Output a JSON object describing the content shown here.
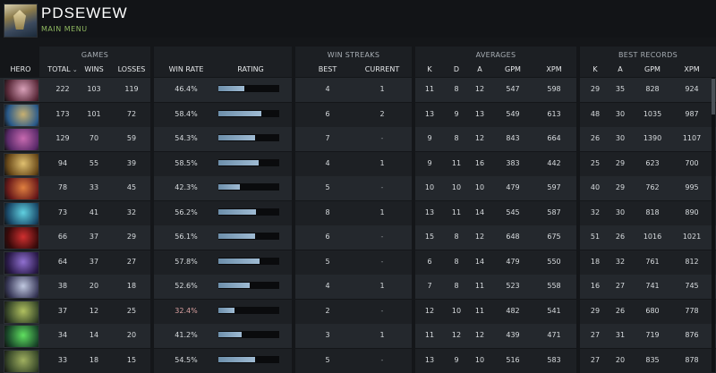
{
  "header": {
    "player_name": "PDSEWEW",
    "main_menu": "MAIN MENU"
  },
  "groups": {
    "games": "GAMES",
    "win_streaks": "WIN STREAKS",
    "averages": "AVERAGES",
    "best_records": "BEST RECORDS"
  },
  "columns": {
    "hero": "HERO",
    "total": "TOTAL",
    "wins": "WINS",
    "losses": "LOSSES",
    "win_rate": "WIN RATE",
    "rating": "RATING",
    "best": "BEST",
    "current": "CURRENT",
    "avg_k": "K",
    "avg_d": "D",
    "avg_a": "A",
    "avg_gpm": "GPM",
    "avg_xpm": "XPM",
    "rec_k": "K",
    "rec_a": "A",
    "rec_gpm": "GPM",
    "rec_xpm": "XPM"
  },
  "colors": {
    "accent_green": "#8fb860",
    "low_winrate": "#d9a0a0",
    "rating_bar": "#9fbbd3"
  },
  "rows": [
    {
      "hero_icon": "hero-portrait-purple",
      "total": "222",
      "wins": "103",
      "losses": "119",
      "win_rate": "46.4%",
      "rating": 0.42,
      "best": "4",
      "current": "1",
      "k": "11",
      "d": "8",
      "a": "12",
      "gpm": "547",
      "xpm": "598",
      "rk": "29",
      "ra": "35",
      "rgpm": "828",
      "rxpm": "924",
      "c1": "#d8a0b8",
      "c2": "#5a2a3a"
    },
    {
      "hero_icon": "hero-portrait-blue",
      "total": "173",
      "wins": "101",
      "losses": "72",
      "win_rate": "58.4%",
      "rating": 0.7,
      "best": "6",
      "current": "2",
      "k": "13",
      "d": "9",
      "a": "13",
      "gpm": "549",
      "xpm": "613",
      "rk": "48",
      "ra": "30",
      "rgpm": "1035",
      "rxpm": "987",
      "c1": "#c8b070",
      "c2": "#2a5a8a"
    },
    {
      "hero_icon": "hero-portrait-violet",
      "total": "129",
      "wins": "70",
      "losses": "59",
      "win_rate": "54.3%",
      "rating": 0.6,
      "best": "7",
      "current": "-",
      "k": "9",
      "d": "8",
      "a": "12",
      "gpm": "843",
      "xpm": "664",
      "rk": "26",
      "ra": "30",
      "rgpm": "1390",
      "rxpm": "1107",
      "c1": "#c86ab0",
      "c2": "#5a2a6a"
    },
    {
      "hero_icon": "hero-portrait-gold",
      "total": "94",
      "wins": "55",
      "losses": "39",
      "win_rate": "58.5%",
      "rating": 0.66,
      "best": "4",
      "current": "1",
      "k": "9",
      "d": "11",
      "a": "16",
      "gpm": "383",
      "xpm": "442",
      "rk": "25",
      "ra": "29",
      "rgpm": "623",
      "rxpm": "700",
      "c1": "#e0c070",
      "c2": "#6a4a1a"
    },
    {
      "hero_icon": "hero-portrait-red",
      "total": "78",
      "wins": "33",
      "losses": "45",
      "win_rate": "42.3%",
      "rating": 0.36,
      "best": "5",
      "current": "-",
      "k": "10",
      "d": "10",
      "a": "10",
      "gpm": "479",
      "xpm": "597",
      "rk": "40",
      "ra": "29",
      "rgpm": "762",
      "rxpm": "995",
      "c1": "#e08040",
      "c2": "#6a1a1a"
    },
    {
      "hero_icon": "hero-portrait-cyan",
      "total": "73",
      "wins": "41",
      "losses": "32",
      "win_rate": "56.2%",
      "rating": 0.62,
      "best": "8",
      "current": "1",
      "k": "13",
      "d": "11",
      "a": "14",
      "gpm": "545",
      "xpm": "587",
      "rk": "32",
      "ra": "30",
      "rgpm": "818",
      "rxpm": "890",
      "c1": "#60d0e0",
      "c2": "#1a4a6a"
    },
    {
      "hero_icon": "hero-portrait-crimson",
      "total": "66",
      "wins": "37",
      "losses": "29",
      "win_rate": "56.1%",
      "rating": 0.6,
      "best": "6",
      "current": "-",
      "k": "15",
      "d": "8",
      "a": "12",
      "gpm": "648",
      "xpm": "675",
      "rk": "51",
      "ra": "26",
      "rgpm": "1016",
      "rxpm": "1021",
      "c1": "#d03030",
      "c2": "#3a0a0a"
    },
    {
      "hero_icon": "hero-portrait-indigo",
      "total": "64",
      "wins": "37",
      "losses": "27",
      "win_rate": "57.8%",
      "rating": 0.68,
      "best": "5",
      "current": "-",
      "k": "6",
      "d": "8",
      "a": "14",
      "gpm": "479",
      "xpm": "550",
      "rk": "18",
      "ra": "32",
      "rgpm": "761",
      "rxpm": "812",
      "c1": "#9070d0",
      "c2": "#2a1a4a"
    },
    {
      "hero_icon": "hero-portrait-pale",
      "total": "38",
      "wins": "20",
      "losses": "18",
      "win_rate": "52.6%",
      "rating": 0.52,
      "best": "4",
      "current": "1",
      "k": "7",
      "d": "8",
      "a": "11",
      "gpm": "523",
      "xpm": "558",
      "rk": "16",
      "ra": "27",
      "rgpm": "741",
      "rxpm": "745",
      "c1": "#c0c8e0",
      "c2": "#3a3a5a"
    },
    {
      "hero_icon": "hero-portrait-green",
      "total": "37",
      "wins": "12",
      "losses": "25",
      "win_rate": "32.4%",
      "rating": 0.26,
      "best": "2",
      "current": "-",
      "k": "12",
      "d": "10",
      "a": "11",
      "gpm": "482",
      "xpm": "541",
      "rk": "29",
      "ra": "26",
      "rgpm": "680",
      "rxpm": "778",
      "c1": "#b0c060",
      "c2": "#3a4a2a"
    },
    {
      "hero_icon": "hero-portrait-lime",
      "total": "34",
      "wins": "14",
      "losses": "20",
      "win_rate": "41.2%",
      "rating": 0.38,
      "best": "3",
      "current": "1",
      "k": "11",
      "d": "12",
      "a": "12",
      "gpm": "439",
      "xpm": "471",
      "rk": "27",
      "ra": "31",
      "rgpm": "719",
      "rxpm": "876",
      "c1": "#60e060",
      "c2": "#1a4a2a"
    },
    {
      "hero_icon": "hero-portrait-olive",
      "total": "33",
      "wins": "18",
      "losses": "15",
      "win_rate": "54.5%",
      "rating": 0.6,
      "best": "5",
      "current": "-",
      "k": "13",
      "d": "9",
      "a": "10",
      "gpm": "516",
      "xpm": "583",
      "rk": "27",
      "ra": "20",
      "rgpm": "835",
      "rxpm": "878",
      "c1": "#a0b060",
      "c2": "#3a4a2a"
    }
  ]
}
